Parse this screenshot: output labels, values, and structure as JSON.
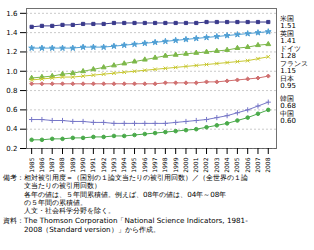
{
  "chart_data": {
    "type": "line",
    "x": [
      1985,
      1986,
      1987,
      1988,
      1989,
      1990,
      1991,
      1992,
      1993,
      1994,
      1995,
      1996,
      1997,
      1998,
      1999,
      2000,
      2001,
      2002,
      2003,
      2004,
      2005,
      2006,
      2007,
      2008
    ],
    "xlim": [
      1984.5,
      2008.8
    ],
    "xticks": [
      1985,
      1986,
      1987,
      1988,
      1989,
      1990,
      1991,
      1992,
      1993,
      1994,
      1995,
      1996,
      1997,
      1998,
      1999,
      2000,
      2001,
      2002,
      2003,
      2004,
      2005,
      2006,
      2007,
      2008
    ],
    "ylim": [
      0.2,
      1.65
    ],
    "yticks": [
      0.2,
      0.4,
      0.6,
      0.8,
      {
        "value": 1,
        "label": "1.0"
      },
      1.2,
      1.4,
      1.6
    ],
    "grid": true,
    "series": [
      {
        "name": "米国\n1.51",
        "color": "#3a3a8c",
        "marker": "square",
        "values": [
          1.46,
          1.47,
          1.47,
          1.48,
          1.48,
          1.49,
          1.49,
          1.49,
          1.5,
          1.5,
          1.5,
          1.5,
          1.5,
          1.5,
          1.5,
          1.5,
          1.5,
          1.51,
          1.51,
          1.51,
          1.51,
          1.51,
          1.51,
          1.51
        ]
      },
      {
        "name": "英国\n1.41",
        "color": "#4f9fd4",
        "marker": "star",
        "values": [
          1.24,
          1.24,
          1.24,
          1.24,
          1.24,
          1.25,
          1.25,
          1.25,
          1.26,
          1.27,
          1.28,
          1.29,
          1.3,
          1.31,
          1.32,
          1.33,
          1.34,
          1.35,
          1.36,
          1.37,
          1.38,
          1.39,
          1.4,
          1.41
        ]
      },
      {
        "name": "ドイツ\n1.28",
        "color": "#7db84a",
        "marker": "triangle",
        "values": [
          0.93,
          0.94,
          0.95,
          0.97,
          0.98,
          1.0,
          1.02,
          1.04,
          1.06,
          1.08,
          1.1,
          1.12,
          1.14,
          1.16,
          1.17,
          1.18,
          1.19,
          1.2,
          1.21,
          1.22,
          1.24,
          1.25,
          1.27,
          1.28
        ]
      },
      {
        "name": "フランス\n1.15",
        "color": "#c8c832",
        "marker": "x",
        "values": [
          0.91,
          0.92,
          0.93,
          0.94,
          0.94,
          0.95,
          0.96,
          0.97,
          0.98,
          0.99,
          1.0,
          1.01,
          1.02,
          1.03,
          1.04,
          1.05,
          1.06,
          1.07,
          1.08,
          1.09,
          1.1,
          1.11,
          1.13,
          1.15
        ]
      },
      {
        "name": "日本\n0.95",
        "color": "#d07070",
        "marker": "diamond",
        "values": [
          0.87,
          0.87,
          0.87,
          0.87,
          0.87,
          0.87,
          0.87,
          0.87,
          0.87,
          0.87,
          0.87,
          0.87,
          0.87,
          0.88,
          0.88,
          0.88,
          0.88,
          0.89,
          0.89,
          0.9,
          0.91,
          0.92,
          0.93,
          0.95
        ]
      },
      {
        "name": "韓国\n0.68",
        "color": "#7878c8",
        "marker": "plus",
        "values": [
          0.5,
          0.5,
          0.49,
          0.49,
          0.48,
          0.48,
          0.47,
          0.47,
          0.46,
          0.46,
          0.46,
          0.46,
          0.46,
          0.46,
          0.47,
          0.48,
          0.49,
          0.5,
          0.52,
          0.54,
          0.57,
          0.6,
          0.64,
          0.68
        ]
      },
      {
        "name": "中国\n0.60",
        "color": "#4aaa4a",
        "marker": "circle",
        "values": [
          0.29,
          0.29,
          0.3,
          0.3,
          0.31,
          0.31,
          0.32,
          0.32,
          0.33,
          0.33,
          0.34,
          0.35,
          0.36,
          0.37,
          0.38,
          0.39,
          0.4,
          0.42,
          0.44,
          0.46,
          0.49,
          0.52,
          0.56,
          0.6
        ]
      }
    ],
    "annotations": [
      "備考：相対被引用度＝（国別の１論文当たりの被引用回数）／（全世界の１論\n　　　文当たりの被引用回数）\n　　　各年の値は、５年間累積値。例えば、08年の値は、04年～08年\n　　　の５年間の累積値。\n　　　人文・社会科学分野を除く。",
      "資料：The Thomson Corporation「National Science Indicators, 1981-\n　　　2008（Standard version）」から作成。"
    ]
  }
}
